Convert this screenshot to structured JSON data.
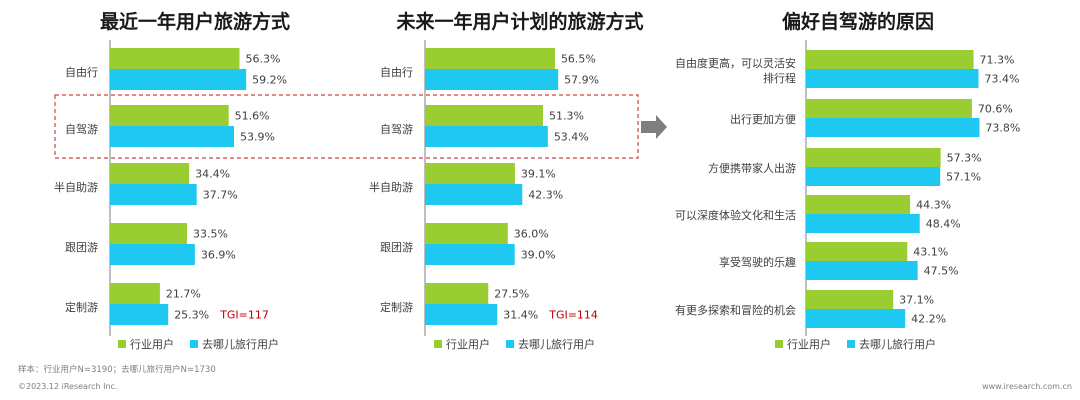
{
  "colors": {
    "industry": "#9ACD32",
    "qunar": "#1EC8F0",
    "axis": "#7f7f7f",
    "highlight": "#d04040",
    "arrow": "#7f7f7f",
    "tgi": "#c00000"
  },
  "chart_data": [
    {
      "type": "bar",
      "orientation": "horizontal",
      "title": "最近一年用户旅游方式",
      "categories": [
        "自由行",
        "自驾游",
        "半自助游",
        "跟团游",
        "定制游"
      ],
      "series": [
        {
          "name": "行业用户",
          "values": [
            56.3,
            51.6,
            34.4,
            33.5,
            21.7
          ]
        },
        {
          "name": "去哪儿旅行用户",
          "values": [
            59.2,
            53.9,
            37.7,
            36.9,
            25.3
          ]
        }
      ],
      "value_suffix": "%",
      "annotation": {
        "category": "定制游",
        "text": "TGI=117"
      },
      "highlighted_category": "自驾游",
      "legend": "bottom"
    },
    {
      "type": "bar",
      "orientation": "horizontal",
      "title": "未来一年用户计划的旅游方式",
      "categories": [
        "自由行",
        "自驾游",
        "半自助游",
        "跟团游",
        "定制游"
      ],
      "series": [
        {
          "name": "行业用户",
          "values": [
            56.5,
            51.3,
            39.1,
            36.0,
            27.5
          ]
        },
        {
          "name": "去哪儿旅行用户",
          "values": [
            57.9,
            53.4,
            42.3,
            39.0,
            31.4
          ]
        }
      ],
      "value_suffix": "%",
      "annotation": {
        "category": "定制游",
        "text": "TGI=114"
      },
      "highlighted_category": "自驾游",
      "legend": "bottom"
    },
    {
      "type": "bar",
      "orientation": "horizontal",
      "title": "偏好自驾游的原因",
      "categories": [
        "自由度更高，可以灵活安排行程",
        "出行更加方便",
        "方便携带家人出游",
        "可以深度体验文化和生活",
        "享受驾驶的乐趣",
        "有更多探索和冒险的机会"
      ],
      "series": [
        {
          "name": "行业用户",
          "values": [
            71.3,
            70.6,
            57.3,
            44.3,
            43.1,
            37.1
          ]
        },
        {
          "name": "去哪儿旅行用户",
          "values": [
            73.4,
            73.8,
            57.1,
            48.4,
            47.5,
            42.2
          ]
        }
      ],
      "value_suffix": "%",
      "legend": "bottom"
    }
  ],
  "footer": {
    "sample": "样本：行业用户N=3190；去哪儿旅行用户N=1730",
    "copyright": "©2023.12 iResearch Inc.",
    "website": "www.iresearch.com.cn"
  }
}
